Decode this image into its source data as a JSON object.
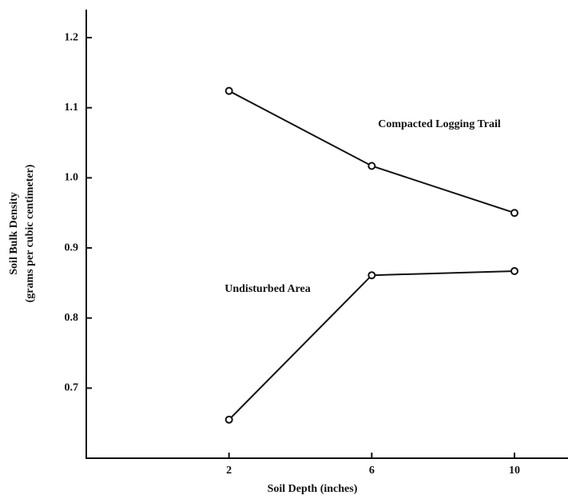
{
  "chart_data": {
    "type": "line",
    "xlabel": "Soil Depth (inches)",
    "ylabel": [
      "Soil Bulk Density",
      "(grams per cubic centimeter)"
    ],
    "x": [
      2,
      6,
      10
    ],
    "series": [
      {
        "name": "Compacted Logging Trail",
        "color": "#111111",
        "values": [
          1.124,
          1.017,
          0.95
        ]
      },
      {
        "name": "Undisturbed Area",
        "color": "#111111",
        "values": [
          0.655,
          0.861,
          0.867
        ]
      }
    ],
    "xlim": [
      -2,
      11.5
    ],
    "xticks": [
      2,
      6,
      10
    ],
    "ylim": [
      0.6,
      1.24
    ],
    "yticks": [
      0.7,
      0.8,
      0.9,
      {
        "value": 1,
        "label": "1.0"
      },
      1.1,
      1.2
    ],
    "grid": false
  }
}
